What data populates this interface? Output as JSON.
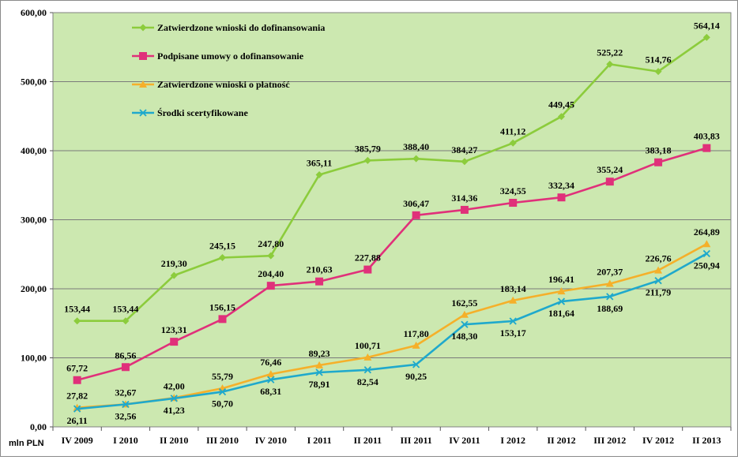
{
  "chart_data": {
    "type": "line",
    "title": "",
    "xlabel": "",
    "ylabel": "",
    "unit_label": "mln PLN",
    "categories": [
      "IV 2009",
      "I 2010",
      "II 2010",
      "III 2010",
      "IV 2010",
      "I 2011",
      "II 2011",
      "III 2011",
      "IV 2011",
      "I 2012",
      "II 2012",
      "III 2012",
      "IV 2012",
      "II 2013"
    ],
    "ylim": [
      0,
      600
    ],
    "yticks": [
      "0,00",
      "100,00",
      "200,00",
      "300,00",
      "400,00",
      "500,00",
      "600,00"
    ],
    "grid": true,
    "plot_background": "#cce8b0",
    "legend": "top-left",
    "series": [
      {
        "name": "Zatwierdzone wnioski do dofinansowania",
        "color": "#8ccc3c",
        "marker": "diamond",
        "values": [
          153.44,
          153.44,
          219.3,
          245.15,
          247.8,
          365.11,
          385.79,
          388.4,
          384.27,
          411.12,
          449.45,
          525.22,
          514.76,
          564.14
        ],
        "labels": [
          "153,44",
          "153,44",
          "219,30",
          "245,15",
          "247,80",
          "365,11",
          "385,79",
          "388,40",
          "384,27",
          "411,12",
          "449,45",
          "525,22",
          "514,76",
          "564,14"
        ]
      },
      {
        "name": "Podpisane umowy o dofinansowanie",
        "color": "#e0307a",
        "marker": "square",
        "values": [
          67.72,
          86.56,
          123.31,
          156.15,
          204.4,
          210.63,
          227.88,
          306.47,
          314.36,
          324.55,
          332.34,
          355.24,
          383.18,
          403.83
        ],
        "labels": [
          "67,72",
          "86,56",
          "123,31",
          "156,15",
          "204,40",
          "210,63",
          "227,88",
          "306,47",
          "314,36",
          "324,55",
          "332,34",
          "355,24",
          "383,18",
          "403,83"
        ]
      },
      {
        "name": "Zatwierdzone wnioski o płatność",
        "color": "#f5b02a",
        "marker": "triangle",
        "values": [
          27.82,
          32.67,
          42.0,
          55.79,
          76.46,
          89.23,
          100.71,
          117.8,
          162.55,
          183.14,
          196.41,
          207.37,
          226.76,
          264.89
        ],
        "labels": [
          "27,82",
          "32,67",
          "42,00",
          "55,79",
          "76,46",
          "89,23",
          "100,71",
          "117,80",
          "162,55",
          "183,14",
          "196,41",
          "207,37",
          "226,76",
          "264,89"
        ]
      },
      {
        "name": "Środki scertyfikowane",
        "color": "#1fa9cc",
        "marker": "x",
        "values": [
          26.11,
          32.56,
          41.23,
          50.7,
          68.31,
          78.91,
          82.54,
          90.25,
          148.3,
          153.17,
          181.64,
          188.69,
          211.79,
          250.94
        ],
        "labels": [
          "26,11",
          "32,56",
          "41,23",
          "50,70",
          "68,31",
          "78,91",
          "82,54",
          "90,25",
          "148,30",
          "153,17",
          "181,64",
          "188,69",
          "211,79",
          "250,94"
        ]
      }
    ]
  }
}
